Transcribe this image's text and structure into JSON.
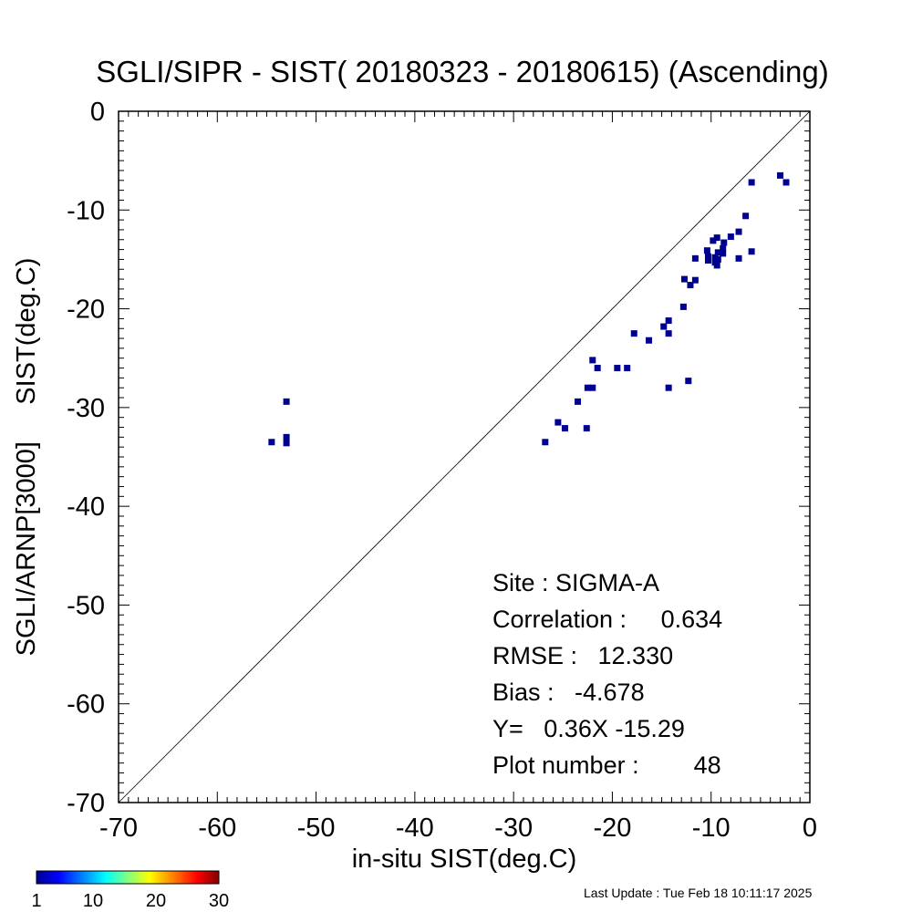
{
  "chart_data": {
    "type": "scatter",
    "title": "SGLI/SIPR - SIST( 20180323 - 20180615) (Ascending)",
    "xlabel": "in-situ SIST(deg.C)",
    "ylabel": "SGLI/ARNP[3000]     SIST(deg.C)",
    "xlim": [
      -70,
      0
    ],
    "ylim": [
      -70,
      0
    ],
    "xticks": [
      -70,
      -60,
      -50,
      -40,
      -30,
      -20,
      -10,
      0
    ],
    "yticks": [
      -70,
      -60,
      -50,
      -40,
      -30,
      -20,
      -10,
      0
    ],
    "reference_line": "1:1",
    "marker_color": "#000090",
    "points": [
      [
        -54.5,
        -33.5
      ],
      [
        -53,
        -29.4
      ],
      [
        -53,
        -33
      ],
      [
        -53,
        -33.6
      ],
      [
        -26.8,
        -33.5
      ],
      [
        -25.5,
        -31.5
      ],
      [
        -24.8,
        -32.1
      ],
      [
        -23.5,
        -29.4
      ],
      [
        -22.6,
        -32.1
      ],
      [
        -22.5,
        -28
      ],
      [
        -22,
        -28
      ],
      [
        -22,
        -25.2
      ],
      [
        -21.5,
        -26
      ],
      [
        -19.5,
        -26
      ],
      [
        -18.5,
        -26
      ],
      [
        -17.8,
        -22.5
      ],
      [
        -16.3,
        -23.2
      ],
      [
        -14.8,
        -21.8
      ],
      [
        -14.3,
        -21.2
      ],
      [
        -14.3,
        -22.5
      ],
      [
        -14.3,
        -28
      ],
      [
        -12.8,
        -19.8
      ],
      [
        -12.7,
        -17
      ],
      [
        -12.3,
        -27.3
      ],
      [
        -12.1,
        -17.6
      ],
      [
        -11.6,
        -17.1
      ],
      [
        -11.6,
        -14.9
      ],
      [
        -10.4,
        -14.1
      ],
      [
        -10.3,
        -14.7
      ],
      [
        -10.3,
        -15.1
      ],
      [
        -9.8,
        -13.1
      ],
      [
        -9.6,
        -14.8
      ],
      [
        -9.6,
        -15.3
      ],
      [
        -9.4,
        -12.8
      ],
      [
        -9.4,
        -15.6
      ],
      [
        -9.3,
        -14.3
      ],
      [
        -9.3,
        -15
      ],
      [
        -8.8,
        -13.9
      ],
      [
        -8.7,
        -13.3
      ],
      [
        -8.8,
        -14.4
      ],
      [
        -8.0,
        -12.7
      ],
      [
        -7.2,
        -12.2
      ],
      [
        -7.2,
        -14.9
      ],
      [
        -6.5,
        -10.6
      ],
      [
        -5.9,
        -7.2
      ],
      [
        -5.9,
        -14.2
      ],
      [
        -3.0,
        -6.5
      ],
      [
        -2.4,
        -7.2
      ]
    ],
    "stats": [
      "Site : SIGMA-A",
      "Correlation :     0.634",
      "RMSE :   12.330",
      "Bias :   -4.678",
      "Y=   0.36X -15.29",
      "Plot number :        48"
    ],
    "colorbar": {
      "labels": [
        "1",
        "10",
        "20",
        "30"
      ],
      "stops": [
        "#00008f",
        "#0000ff",
        "#00ffff",
        "#ffff00",
        "#ff0000",
        "#800000"
      ]
    },
    "footer": "Last Update : Tue Feb 18 10:11:17 2025"
  }
}
